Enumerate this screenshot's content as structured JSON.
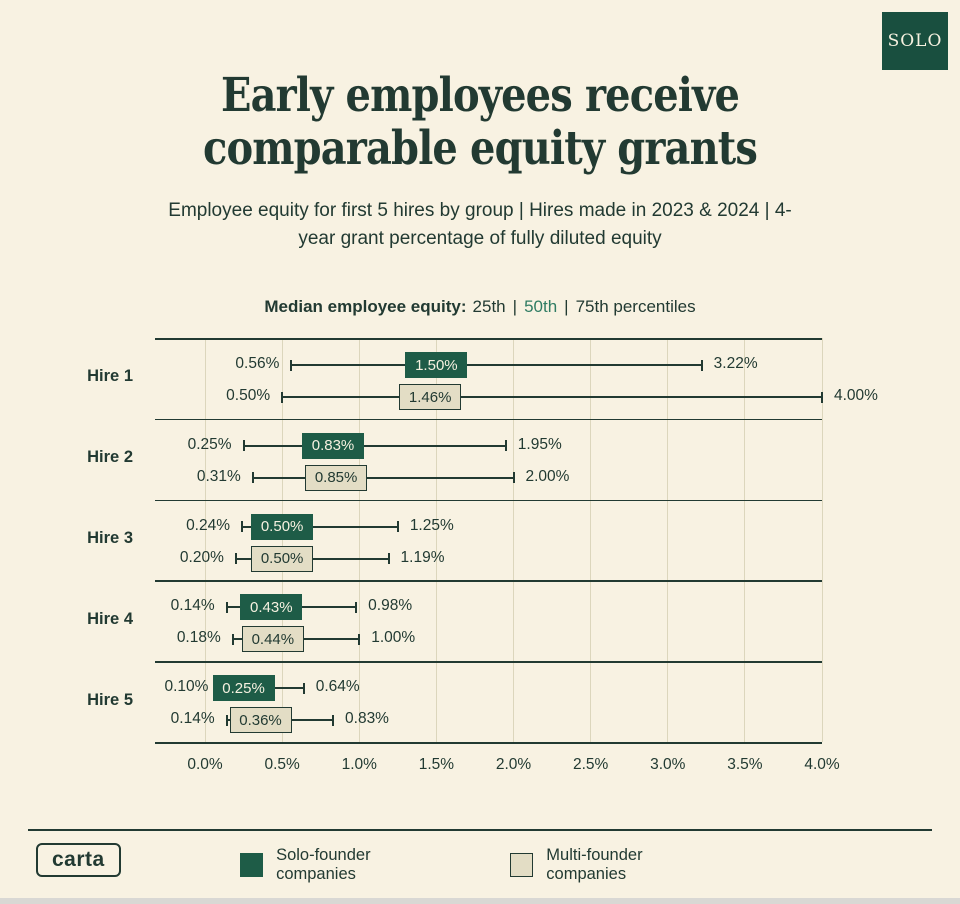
{
  "badge": {
    "label": "SOLO"
  },
  "header": {
    "title_line1": "Early employees receive",
    "title_line2": "comparable equity grants",
    "subtitle": "Employee equity for first 5 hires by group | Hires made in 2023 & 2024 | 4-year grant percentage of fully diluted equity"
  },
  "note": {
    "prefix": "Median employee equity:",
    "p25": "25th",
    "p50": "50th",
    "p75": "75th percentiles",
    "separator": "|"
  },
  "chart_data": {
    "type": "box-range",
    "title": "Early employees receive comparable equity grants",
    "xlim": [
      0,
      4
    ],
    "x_tick_values": [
      0,
      0.5,
      1,
      1.5,
      2,
      2.5,
      3,
      3.5,
      4
    ],
    "x_tick_labels": [
      "0.0%",
      "0.5%",
      "1.0%",
      "1.5%",
      "2.0%",
      "2.5%",
      "3.0%",
      "3.5%",
      "4.0%"
    ],
    "series_names": [
      "Solo-founder companies",
      "Multi-founder companies"
    ],
    "groups": [
      {
        "label": "Hire 1",
        "rows": [
          {
            "series": "solo",
            "p25": 0.56,
            "median": 1.5,
            "p75": 3.22,
            "p25_label": "0.56%",
            "median_label": "1.50%",
            "p75_label": "3.22%"
          },
          {
            "series": "multi",
            "p25": 0.5,
            "median": 1.46,
            "p75": 4.0,
            "p25_label": "0.50%",
            "median_label": "1.46%",
            "p75_label": "4.00%"
          }
        ]
      },
      {
        "label": "Hire 2",
        "rows": [
          {
            "series": "solo",
            "p25": 0.25,
            "median": 0.83,
            "p75": 1.95,
            "p25_label": "0.25%",
            "median_label": "0.83%",
            "p75_label": "1.95%"
          },
          {
            "series": "multi",
            "p25": 0.31,
            "median": 0.85,
            "p75": 2.0,
            "p25_label": "0.31%",
            "median_label": "0.85%",
            "p75_label": "2.00%"
          }
        ]
      },
      {
        "label": "Hire 3",
        "rows": [
          {
            "series": "solo",
            "p25": 0.24,
            "median": 0.5,
            "p75": 1.25,
            "p25_label": "0.24%",
            "median_label": "0.50%",
            "p75_label": "1.25%"
          },
          {
            "series": "multi",
            "p25": 0.2,
            "median": 0.5,
            "p75": 1.19,
            "p25_label": "0.20%",
            "median_label": "0.50%",
            "p75_label": "1.19%"
          }
        ]
      },
      {
        "label": "Hire 4",
        "rows": [
          {
            "series": "solo",
            "p25": 0.14,
            "median": 0.43,
            "p75": 0.98,
            "p25_label": "0.14%",
            "median_label": "0.43%",
            "p75_label": "0.98%"
          },
          {
            "series": "multi",
            "p25": 0.18,
            "median": 0.44,
            "p75": 1.0,
            "p25_label": "0.18%",
            "median_label": "0.44%",
            "p75_label": "1.00%"
          }
        ]
      },
      {
        "label": "Hire 5",
        "rows": [
          {
            "series": "solo",
            "p25": 0.1,
            "median": 0.25,
            "p75": 0.64,
            "p25_label": "0.10%",
            "median_label": "0.25%",
            "p75_label": "0.64%"
          },
          {
            "series": "multi",
            "p25": 0.14,
            "median": 0.36,
            "p75": 0.83,
            "p25_label": "0.14%",
            "median_label": "0.36%",
            "p75_label": "0.83%"
          }
        ]
      }
    ]
  },
  "footer": {
    "logo": "carta",
    "legend": [
      {
        "name": "solo",
        "label": "Solo-founder companies"
      },
      {
        "name": "multi",
        "label": "Multi-founder companies"
      }
    ]
  },
  "colors": {
    "background": "#f8f2e2",
    "ink": "#223a32",
    "solo_green": "#1e5c47",
    "badge_green": "#194f3f",
    "note_green": "#2f7c63",
    "multi_beige": "#e3ddc5",
    "gridline": "#dcd6bc"
  }
}
